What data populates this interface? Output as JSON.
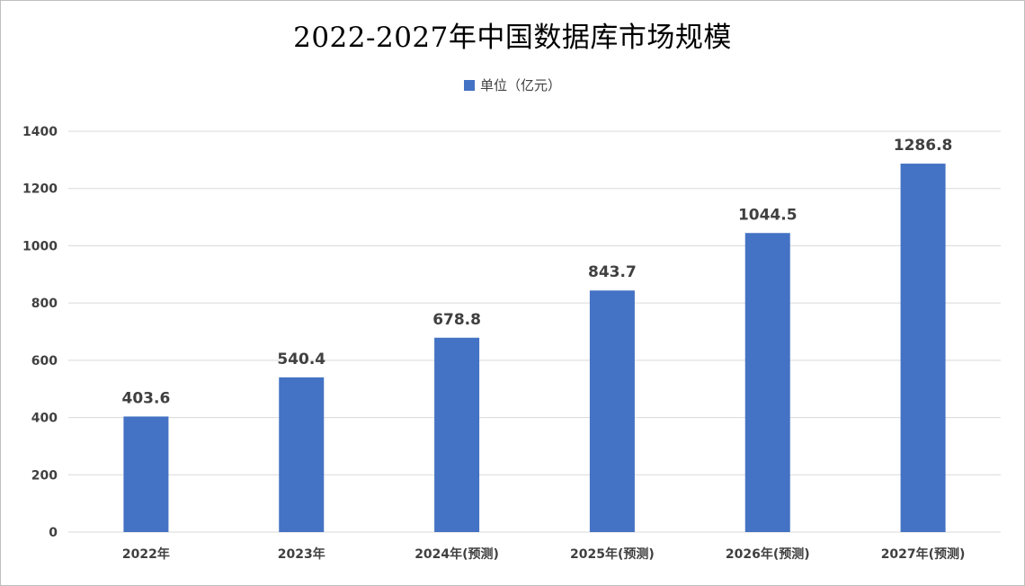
{
  "chart_data": {
    "type": "bar",
    "title": "2022-2027年中国数据库市场规模",
    "categories": [
      "2022年",
      "2023年",
      "2024年(预测)",
      "2025年(预测)",
      "2026年(预测)",
      "2027年(预测)"
    ],
    "series": [
      {
        "name": "单位（亿元）",
        "values": [
          403.6,
          540.4,
          678.8,
          843.7,
          1044.5,
          1286.8
        ],
        "color": "#4472c4"
      }
    ],
    "data_labels": [
      "403.6",
      "540.4",
      "678.8",
      "843.7",
      "1044.5",
      "1286.8"
    ],
    "ylim": [
      0,
      1400
    ],
    "yticks": [
      0,
      200,
      400,
      600,
      800,
      1000,
      1200,
      1400
    ],
    "grid": true,
    "legend_position": "top",
    "xlabel": "",
    "ylabel": ""
  }
}
